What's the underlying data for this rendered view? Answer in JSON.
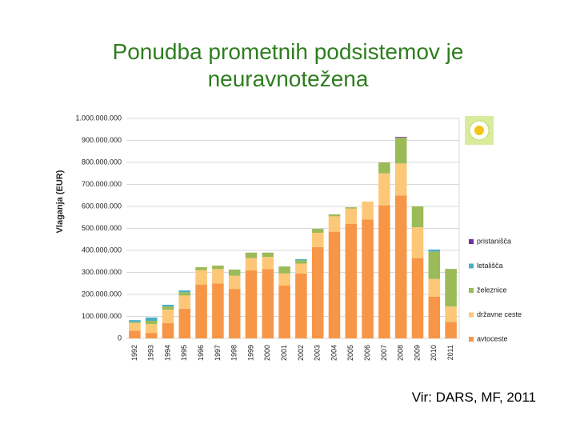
{
  "title": "Ponudba prometnih podsistemov je neuravnotežena",
  "source": "Vir: DARS, MF, 2011",
  "chart_data": {
    "type": "stacked_bar",
    "y_label": "Vlaganja (EUR)",
    "categories": [
      "1992",
      "1993",
      "1994",
      "1995",
      "1996",
      "1997",
      "1998",
      "1999",
      "2000",
      "2001",
      "2002",
      "2003",
      "2004",
      "2005",
      "2006",
      "2007",
      "2008",
      "2009",
      "2010",
      "2011"
    ],
    "series": [
      {
        "name": "avtoceste",
        "color": "#f79646",
        "values": [
          35000000,
          25000000,
          70000000,
          135000000,
          245000000,
          250000000,
          225000000,
          310000000,
          315000000,
          240000000,
          295000000,
          415000000,
          485000000,
          520000000,
          540000000,
          605000000,
          650000000,
          365000000,
          190000000,
          75000000
        ]
      },
      {
        "name": "državne ceste",
        "color": "#fcc878",
        "values": [
          35000000,
          40000000,
          60000000,
          60000000,
          65000000,
          65000000,
          60000000,
          55000000,
          55000000,
          55000000,
          45000000,
          65000000,
          70000000,
          70000000,
          82000000,
          145000000,
          145000000,
          140000000,
          80000000,
          70000000
        ]
      },
      {
        "name": "železnice",
        "color": "#9bbb59",
        "values": [
          5000000,
          15000000,
          15000000,
          15000000,
          14000000,
          16000000,
          28000000,
          25000000,
          20000000,
          32000000,
          15000000,
          18000000,
          9000000,
          6000000,
          0,
          50000000,
          118000000,
          95000000,
          125000000,
          171000000
        ]
      },
      {
        "name": "letališča",
        "color": "#4bacc6",
        "values": [
          8000000,
          15000000,
          8000000,
          8000000,
          0,
          0,
          0,
          0,
          0,
          0,
          5000000,
          0,
          0,
          0,
          0,
          0,
          0,
          0,
          9000000,
          0
        ]
      },
      {
        "name": "pristanišča",
        "color": "#7030a0",
        "values": [
          0,
          0,
          0,
          0,
          0,
          0,
          0,
          0,
          0,
          0,
          0,
          0,
          0,
          0,
          0,
          0,
          3000000,
          0,
          0,
          0
        ]
      }
    ],
    "ylim": [
      0,
      1000000000
    ],
    "yticks": [
      0,
      {
        "value": 100000000,
        "label": "100.000.000"
      },
      {
        "value": 200000000,
        "label": "200.000.000"
      },
      {
        "value": 300000000,
        "label": "300.000.000"
      },
      {
        "value": 400000000,
        "label": "400.000.000"
      },
      {
        "value": 500000000,
        "label": "500.000.000"
      },
      {
        "value": 600000000,
        "label": "600.000.000"
      },
      {
        "value": 700000000,
        "label": "700.000.000"
      },
      {
        "value": 800000000,
        "label": "800.000.000"
      },
      {
        "value": 900000000,
        "label": "900.000.000"
      },
      {
        "value": 1000000000,
        "label": "1.000.000.000"
      }
    ],
    "grid": true
  }
}
